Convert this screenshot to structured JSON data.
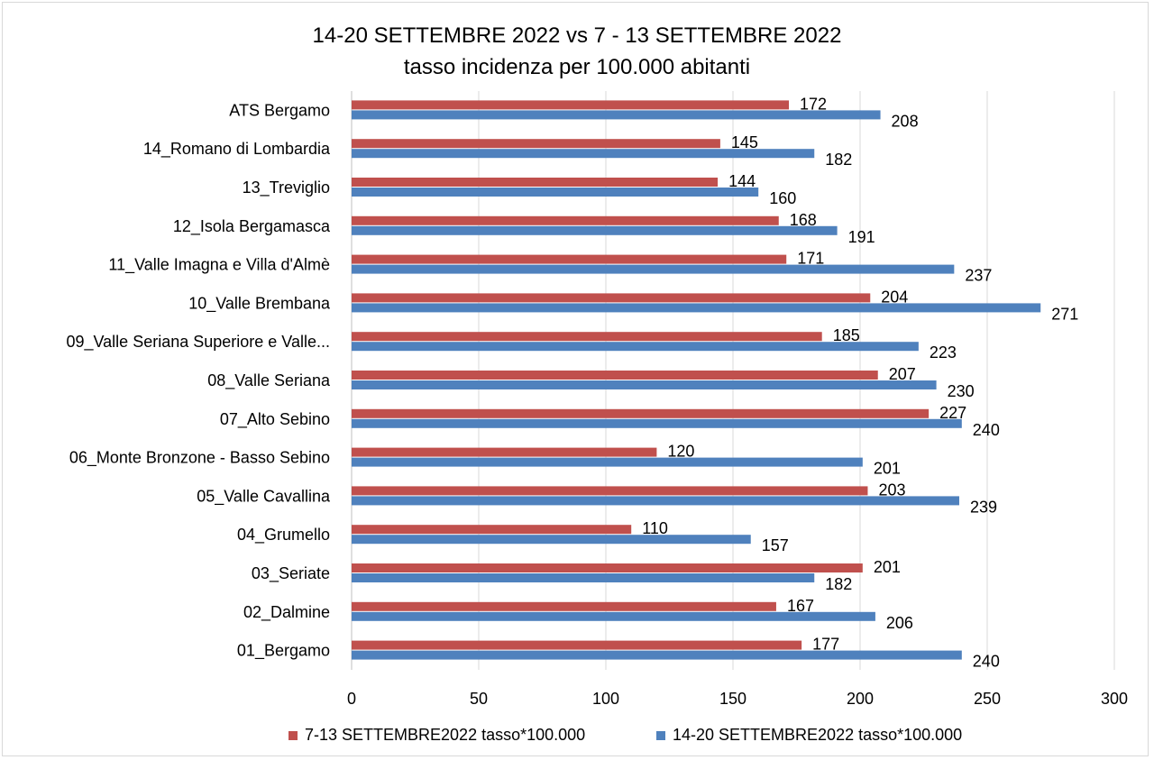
{
  "chart_data": {
    "type": "bar",
    "orientation": "horizontal",
    "title": "14-20 SETTEMBRE 2022 vs 7 - 13 SETTEMBRE 2022",
    "subtitle": "tasso incidenza per 100.000 abitanti",
    "categories": [
      "ATS Bergamo",
      "14_Romano di Lombardia",
      "13_Treviglio",
      "12_Isola Bergamasca",
      "11_Valle Imagna e Villa d'Almè",
      "10_Valle Brembana",
      "09_Valle Seriana Superiore e Valle...",
      "08_Valle Seriana",
      "07_Alto Sebino",
      "06_Monte Bronzone - Basso Sebino",
      "05_Valle Cavallina",
      "04_Grumello",
      "03_Seriate",
      "02_Dalmine",
      "01_Bergamo"
    ],
    "series": [
      {
        "name": "7-13  SETTEMBRE2022 tasso*100.000",
        "color": "#C0504D",
        "values": [
          172,
          145,
          144,
          168,
          171,
          204,
          185,
          207,
          227,
          120,
          203,
          110,
          201,
          167,
          177
        ]
      },
      {
        "name": "14-20  SETTEMBRE2022 tasso*100.000",
        "color": "#4F81BD",
        "values": [
          208,
          182,
          160,
          191,
          237,
          271,
          223,
          230,
          240,
          201,
          239,
          157,
          182,
          206,
          240
        ]
      }
    ],
    "xlim": [
      0,
      300
    ],
    "xticks": [
      "0",
      "50",
      "100",
      "150",
      "200",
      "250",
      "300"
    ],
    "grid": true,
    "legend": "bottom"
  }
}
